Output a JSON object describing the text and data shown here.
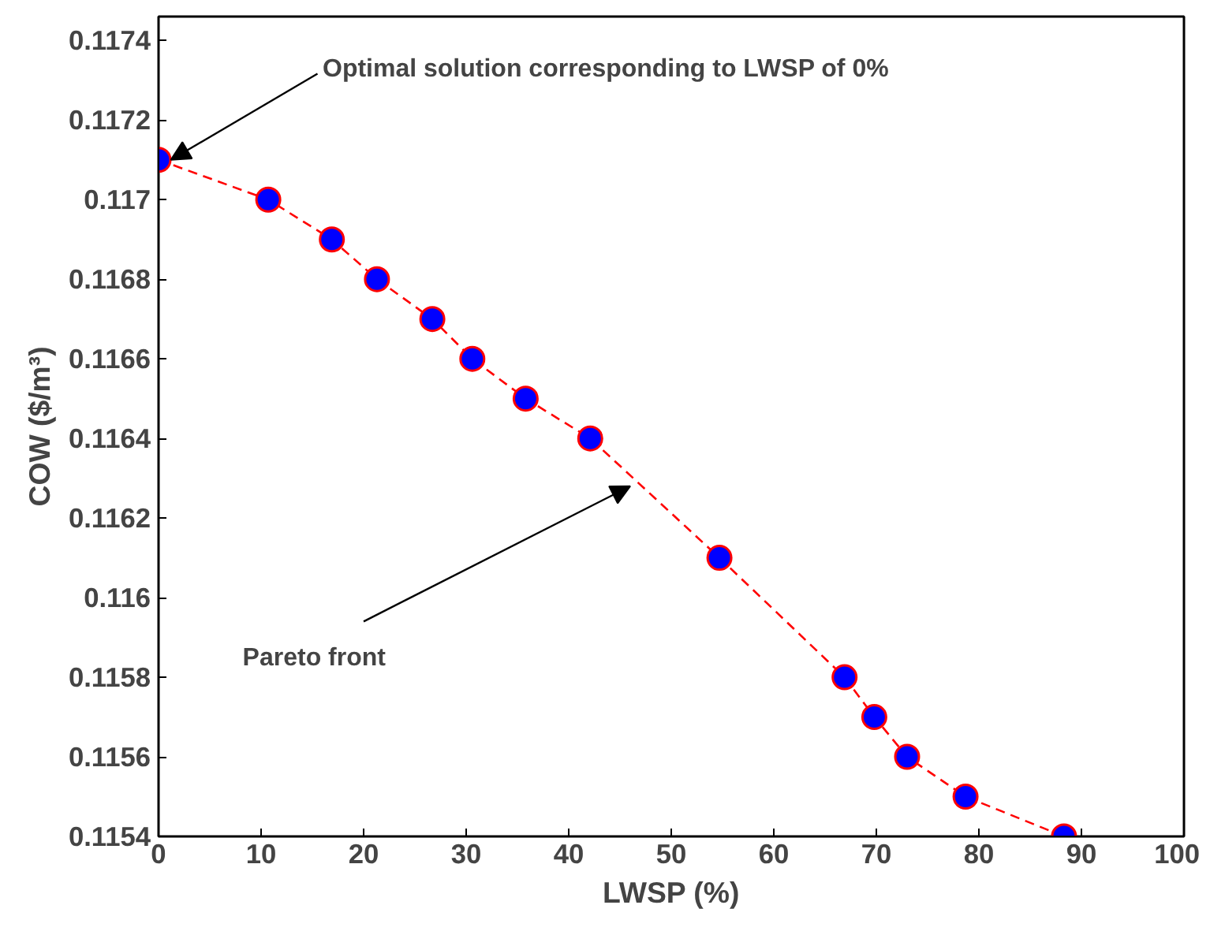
{
  "chart_data": {
    "type": "line",
    "xlabel": "LWSP (%)",
    "ylabel": "COW ($/m³)",
    "x": [
      0,
      10.7,
      16.9,
      21.3,
      26.7,
      30.6,
      35.8,
      42.1,
      54.7,
      66.9,
      69.8,
      73.0,
      78.7,
      88.3
    ],
    "series": [
      {
        "type": "line",
        "color": "#ff0000",
        "line_style": "dashed",
        "marker": "none",
        "values": [
          0.1171,
          0.117,
          0.1169,
          0.1168,
          0.1167,
          0.1166,
          0.1165,
          0.1164,
          0.1161,
          0.1158,
          0.1157,
          0.1156,
          0.1155,
          0.1154
        ]
      },
      {
        "type": "scatter",
        "color": "#0000ff",
        "marker": "circle",
        "values": [
          0.1171,
          0.117,
          0.1169,
          0.1168,
          0.1167,
          0.1166,
          0.1165,
          0.1164,
          0.1161,
          0.1158,
          0.1157,
          0.1156,
          0.1155,
          0.1154
        ]
      }
    ],
    "xlim": [
      0,
      100
    ],
    "xticks": [
      0,
      10,
      20,
      30,
      40,
      50,
      60,
      70,
      80,
      90,
      100
    ],
    "ylim": [
      0.1154,
      0.11746
    ],
    "yticks": [
      0.1154,
      0.1156,
      0.1158,
      0.116,
      0.1162,
      0.1164,
      0.1166,
      0.1168,
      0.117,
      0.1172,
      0.1174
    ],
    "grid": false,
    "annotations": [
      {
        "text": "Optimal solution corresponding to LWSP of 0%",
        "x": 0,
        "y": 0.1171
      },
      {
        "text": "Pareto front",
        "x": 46,
        "y": 0.11628
      }
    ]
  }
}
